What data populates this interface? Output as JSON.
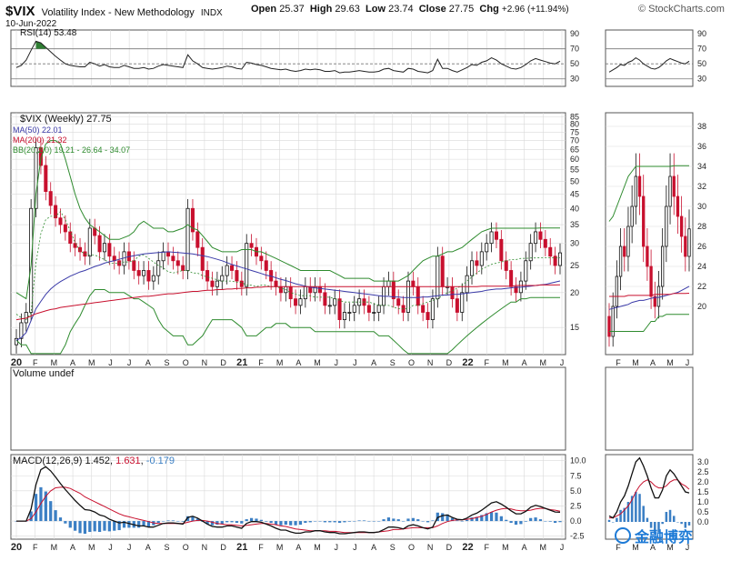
{
  "header": {
    "symbol": "$VIX",
    "name": "Volatility Index - New Methodology",
    "exchange": "INDX",
    "date": "10-Jun-2022",
    "open_label": "Open",
    "open": "25.37",
    "high_label": "High",
    "high": "29.63",
    "low_label": "Low",
    "low": "23.74",
    "close_label": "Close",
    "close": "27.75",
    "chg_label": "Chg",
    "chg": "+2.96 (+11.94%)",
    "brand": "© StockCharts.com",
    "watermark": "金融博弈"
  },
  "panels": {
    "rsi_label": "RSI(14) 53.48",
    "price_label": "$VIX (Weekly) 27.75",
    "ma50_label": "MA(50) 22.01",
    "ma200_label": "MA(200) 21.32",
    "bb_label": "BB(20,2.0) 19.21 - 26.64 - 34.07",
    "volume_label": "Volume undef",
    "macd_label": "MACD(12,26,9)",
    "macd_value": "1.452",
    "macd_signal": "1.631",
    "macd_hist": "-0.179"
  },
  "colors": {
    "up": "#111111",
    "down": "#c8102e",
    "ma50": "#3a3aa8",
    "ma200": "#c8102e",
    "bb": "#2e8b2e",
    "rsi_fill": "#2e7d32",
    "macd_hist": "#3b7fc4",
    "grid": "#d9d9d9"
  },
  "chart_data": [
    {
      "type": "candlestick",
      "title": "$VIX (Weekly) 27.75",
      "series_names": [
        "MA(50) 22.01",
        "MA(200) 21.32",
        "BB(20,2.0) 19.21 - 26.64 - 34.07"
      ],
      "y_scale": "log",
      "y_ticks": [
        15,
        20,
        25,
        30,
        35,
        40,
        45,
        50,
        55,
        60,
        65,
        70,
        75,
        80,
        85
      ],
      "x_ticks": [
        "20",
        "F",
        "M",
        "A",
        "M",
        "J",
        "J",
        "A",
        "S",
        "O",
        "N",
        "D",
        "21",
        "F",
        "M",
        "A",
        "M",
        "J",
        "J",
        "A",
        "S",
        "O",
        "N",
        "D",
        "22",
        "F",
        "M",
        "A",
        "M",
        "J"
      ],
      "close": [
        13.7,
        15.6,
        17.0,
        40.0,
        66.0,
        57.0,
        46.0,
        41.0,
        37.0,
        35.0,
        33.0,
        30.0,
        29.0,
        28.0,
        27.0,
        34.0,
        32.0,
        28.0,
        30.0,
        27.0,
        26.0,
        25.0,
        28.0,
        26.0,
        24.0,
        23.0,
        24.0,
        22.0,
        23.0,
        26.0,
        28.0,
        27.0,
        26.0,
        25.0,
        24.0,
        40.0,
        33.0,
        29.0,
        24.0,
        22.0,
        21.0,
        22.0,
        23.0,
        25.0,
        24.0,
        22.0,
        21.0,
        30.0,
        29.0,
        27.0,
        26.0,
        24.0,
        22.0,
        21.0,
        20.0,
        21.0,
        19.0,
        18.0,
        19.0,
        21.0,
        20.0,
        21.0,
        20.0,
        18.0,
        18.0,
        19.0,
        16.0,
        17.0,
        17.0,
        18.0,
        19.0,
        18.0,
        17.0,
        17.0,
        18.0,
        21.0,
        22.0,
        19.0,
        18.0,
        17.0,
        22.0,
        21.0,
        18.0,
        17.0,
        16.0,
        19.0,
        27.0,
        21.0,
        21.0,
        19.0,
        17.0,
        20.0,
        23.0,
        26.0,
        25.0,
        28.0,
        30.0,
        33.0,
        31.0,
        26.0,
        24.0,
        21.0,
        20.0,
        22.0,
        26.0,
        30.0,
        33.0,
        31.0,
        29.0,
        27.0,
        25.0,
        27.75
      ],
      "ma50": [
        13.5,
        13.8,
        14.4,
        15.9,
        17.5,
        18.6,
        19.7,
        20.6,
        21.3,
        21.9,
        22.4,
        22.9,
        23.3,
        23.7,
        24.0,
        24.4,
        24.8,
        25.1,
        25.5,
        25.8,
        26.0,
        26.3,
        26.6,
        26.9,
        27.1,
        27.3,
        27.5,
        27.6,
        27.7,
        27.8,
        27.9,
        28.0,
        27.9,
        27.8,
        27.7,
        27.6,
        27.5,
        27.3,
        27.1,
        26.9,
        26.6,
        26.3,
        26.0,
        25.6,
        25.2,
        24.9,
        24.6,
        24.3,
        24.0,
        23.7,
        23.4,
        23.1,
        22.9,
        22.6,
        22.3,
        22.1,
        21.8,
        21.5,
        21.3,
        21.1,
        20.9,
        20.8,
        20.7,
        20.6,
        20.5,
        20.4,
        20.3,
        20.2,
        20.1,
        20.0,
        19.9,
        19.8,
        19.7,
        19.6,
        19.5,
        19.4,
        19.4,
        19.3,
        19.3,
        19.2,
        19.2,
        19.2,
        19.2,
        19.3,
        19.3,
        19.4,
        19.5,
        19.6,
        19.6,
        19.7,
        19.7,
        19.8,
        19.9,
        20.0,
        20.1,
        20.2,
        20.4,
        20.5,
        20.6,
        20.6,
        20.7,
        20.8,
        20.9,
        20.9,
        21.0,
        21.1,
        21.2,
        21.3,
        21.4,
        21.6,
        21.8,
        22.01
      ],
      "ma200": [
        16.0,
        16.1,
        16.2,
        16.5,
        16.8,
        17.0,
        17.2,
        17.4,
        17.5,
        17.7,
        17.8,
        17.9,
        18.0,
        18.1,
        18.2,
        18.3,
        18.4,
        18.5,
        18.6,
        18.7,
        18.8,
        18.9,
        19.0,
        19.1,
        19.2,
        19.3,
        19.4,
        19.4,
        19.5,
        19.6,
        19.7,
        19.8,
        19.8,
        19.9,
        20.0,
        20.1,
        20.2,
        20.2,
        20.3,
        20.4,
        20.4,
        20.5,
        20.5,
        20.6,
        20.6,
        20.7,
        20.7,
        20.8,
        20.8,
        20.9,
        20.9,
        21.0,
        21.0,
        21.0,
        21.0,
        21.0,
        21.0,
        21.0,
        21.0,
        21.0,
        21.0,
        21.0,
        21.0,
        21.0,
        21.0,
        21.0,
        21.0,
        21.0,
        21.0,
        21.0,
        21.0,
        21.0,
        21.0,
        21.0,
        21.0,
        21.0,
        21.0,
        21.0,
        21.0,
        21.0,
        21.0,
        21.0,
        21.0,
        21.0,
        21.0,
        21.0,
        21.0,
        21.0,
        21.0,
        21.0,
        21.0,
        21.0,
        21.0,
        21.0,
        21.0,
        21.1,
        21.1,
        21.1,
        21.1,
        21.1,
        21.1,
        21.1,
        21.2,
        21.2,
        21.2,
        21.2,
        21.2,
        21.3,
        21.3,
        21.3,
        21.3,
        21.32
      ],
      "bb_upper": [
        20.0,
        19.5,
        19.0,
        25.0,
        45.0,
        60.0,
        68.0,
        70.0,
        70.0,
        68.0,
        60.0,
        52.0,
        45.0,
        40.0,
        37.0,
        35.0,
        34.0,
        33.0,
        32.0,
        31.0,
        31.0,
        31.0,
        31.5,
        32.0,
        33.0,
        35.0,
        36.0,
        35.0,
        34.0,
        34.0,
        34.0,
        33.0,
        33.0,
        33.5,
        34.0,
        35.0,
        34.0,
        33.5,
        32.0,
        30.5,
        29.0,
        28.5,
        28.0,
        28.0,
        28.0,
        28.0,
        28.5,
        28.5,
        28.5,
        28.0,
        28.0,
        27.5,
        27.0,
        26.5,
        26.0,
        25.5,
        25.0,
        24.5,
        24.0,
        24.0,
        24.0,
        24.0,
        24.0,
        24.0,
        24.0,
        23.5,
        23.0,
        22.5,
        22.5,
        22.5,
        22.5,
        22.5,
        22.5,
        22.0,
        22.0,
        22.0,
        22.0,
        22.0,
        22.0,
        22.5,
        23.0,
        24.0,
        25.0,
        26.0,
        26.5,
        27.0,
        27.0,
        27.5,
        28.0,
        28.0,
        28.5,
        29.0,
        30.0,
        31.0,
        32.0,
        33.0,
        33.5,
        34.0,
        34.0,
        34.0,
        34.0,
        34.0,
        34.0,
        34.0,
        34.0,
        34.0,
        34.0,
        34.07,
        34.07,
        34.07,
        34.07,
        34.07
      ],
      "bb_lower": [
        13.5,
        13.0,
        13.0,
        9.0,
        6.0,
        5.0,
        5.0,
        5.0,
        5.0,
        10.0,
        13.0,
        14.5,
        15.5,
        16.5,
        18.0,
        19.5,
        20.5,
        20.5,
        20.5,
        20.0,
        20.0,
        20.0,
        20.0,
        19.5,
        19.0,
        19.0,
        18.5,
        18.0,
        17.5,
        16.0,
        15.0,
        14.5,
        14.0,
        14.0,
        14.0,
        13.0,
        13.0,
        13.5,
        14.0,
        15.0,
        16.0,
        16.0,
        16.0,
        16.0,
        16.0,
        15.5,
        15.0,
        14.0,
        14.0,
        14.0,
        14.5,
        15.0,
        15.0,
        15.5,
        15.5,
        15.5,
        15.0,
        15.0,
        15.0,
        15.0,
        15.0,
        14.5,
        14.5,
        14.5,
        14.5,
        14.5,
        14.5,
        14.5,
        14.5,
        14.5,
        14.5,
        14.5,
        14.5,
        14.5,
        14.0,
        14.0,
        14.0,
        13.5,
        13.0,
        12.5,
        12.0,
        12.0,
        11.0,
        10.5,
        10.5,
        10.5,
        11.0,
        11.5,
        12.0,
        12.5,
        13.0,
        13.5,
        14.0,
        14.5,
        15.0,
        15.5,
        16.0,
        16.5,
        17.0,
        17.5,
        18.0,
        18.5,
        18.5,
        19.0,
        19.0,
        19.21,
        19.21,
        19.21,
        19.21,
        19.21,
        19.21,
        19.21
      ]
    },
    {
      "type": "line",
      "title": "RSI(14) 53.48",
      "ylim": [
        20,
        95
      ],
      "y_ticks": [
        30,
        50,
        70,
        90
      ],
      "reference_lines": [
        30,
        50,
        70
      ],
      "values": [
        45,
        48,
        55,
        68,
        80,
        78,
        72,
        66,
        60,
        55,
        50,
        48,
        47,
        46,
        46,
        52,
        50,
        47,
        49,
        46,
        45,
        45,
        48,
        46,
        44,
        44,
        45,
        43,
        44,
        47,
        49,
        48,
        47,
        46,
        45,
        62,
        54,
        50,
        45,
        44,
        43,
        44,
        45,
        47,
        46,
        44,
        43,
        52,
        51,
        49,
        48,
        46,
        44,
        43,
        42,
        43,
        41,
        40,
        41,
        43,
        42,
        43,
        42,
        40,
        40,
        41,
        38,
        39,
        39,
        40,
        41,
        40,
        39,
        39,
        40,
        43,
        44,
        41,
        40,
        39,
        44,
        43,
        40,
        39,
        38,
        41,
        56,
        44,
        44,
        41,
        39,
        42,
        45,
        49,
        48,
        52,
        54,
        58,
        55,
        50,
        47,
        44,
        43,
        45,
        49,
        54,
        57,
        55,
        53,
        51,
        50,
        53.48
      ]
    },
    {
      "type": "bar",
      "title": "Volume undef",
      "values": []
    },
    {
      "type": "line",
      "title": "MACD(12,26,9)",
      "ylim": [
        -3,
        11
      ],
      "y_ticks": [
        -2.5,
        0,
        2.5,
        5,
        7.5,
        10
      ],
      "series": [
        {
          "name": "MACD",
          "values": [
            0,
            0,
            0,
            2,
            6,
            8.5,
            9,
            8.3,
            7.3,
            6.2,
            5.2,
            4.3,
            3.4,
            2.6,
            1.9,
            1.8,
            1.5,
            1.0,
            0.8,
            0.3,
            0,
            -0.3,
            -0.2,
            -0.4,
            -0.6,
            -0.8,
            -0.8,
            -1.0,
            -1.0,
            -0.7,
            -0.4,
            -0.3,
            -0.3,
            -0.4,
            -0.5,
            0.6,
            0.8,
            0.5,
            0,
            -0.5,
            -0.9,
            -1.0,
            -1.0,
            -0.8,
            -0.8,
            -1.0,
            -1.2,
            -0.4,
            -0.1,
            -0.1,
            -0.2,
            -0.5,
            -0.8,
            -1.2,
            -1.5,
            -1.5,
            -1.8,
            -2.0,
            -2.0,
            -1.8,
            -1.8,
            -1.6,
            -1.6,
            -1.8,
            -1.9,
            -1.9,
            -2.1,
            -2.1,
            -2.0,
            -1.9,
            -1.8,
            -1.8,
            -1.9,
            -1.9,
            -1.8,
            -1.4,
            -1.0,
            -1.0,
            -1.1,
            -1.3,
            -0.8,
            -0.6,
            -0.8,
            -1.1,
            -1.3,
            -1.0,
            0.6,
            0.9,
            1.0,
            0.6,
            0.3,
            0.2,
            0.5,
            1.0,
            1.3,
            1.8,
            2.4,
            3.0,
            3.2,
            2.8,
            2.3,
            1.7,
            1.2,
            1.2,
            1.6,
            2.3,
            2.6,
            2.4,
            2.1,
            1.8,
            1.5,
            1.452
          ]
        },
        {
          "name": "Signal",
          "values": [
            0,
            0,
            0,
            0.4,
            1.5,
            2.9,
            4.1,
            5.0,
            5.5,
            5.6,
            5.6,
            5.4,
            5.0,
            4.6,
            4.0,
            3.6,
            3.2,
            2.8,
            2.4,
            2.0,
            1.6,
            1.2,
            0.9,
            0.7,
            0.5,
            0.3,
            0.1,
            -0.1,
            -0.3,
            -0.4,
            -0.4,
            -0.4,
            -0.4,
            -0.4,
            -0.4,
            -0.2,
            0,
            0.1,
            0.1,
            0,
            -0.2,
            -0.4,
            -0.5,
            -0.6,
            -0.6,
            -0.7,
            -0.8,
            -0.7,
            -0.6,
            -0.5,
            -0.4,
            -0.4,
            -0.5,
            -0.6,
            -0.8,
            -0.9,
            -1.1,
            -1.3,
            -1.4,
            -1.5,
            -1.6,
            -1.6,
            -1.6,
            -1.6,
            -1.7,
            -1.7,
            -1.8,
            -1.9,
            -1.9,
            -1.9,
            -1.9,
            -1.9,
            -1.9,
            -1.9,
            -1.8,
            -1.7,
            -1.6,
            -1.4,
            -1.4,
            -1.3,
            -1.2,
            -1.1,
            -1.1,
            -1.1,
            -1.1,
            -1.1,
            -0.8,
            -0.4,
            -0.1,
            0.1,
            0.2,
            0.2,
            0.3,
            0.4,
            0.6,
            0.8,
            1.1,
            1.5,
            1.8,
            2.0,
            2.1,
            2.0,
            1.8,
            1.7,
            1.7,
            1.8,
            2.0,
            2.1,
            2.1,
            1.9,
            1.8,
            1.631
          ]
        }
      ]
    }
  ]
}
